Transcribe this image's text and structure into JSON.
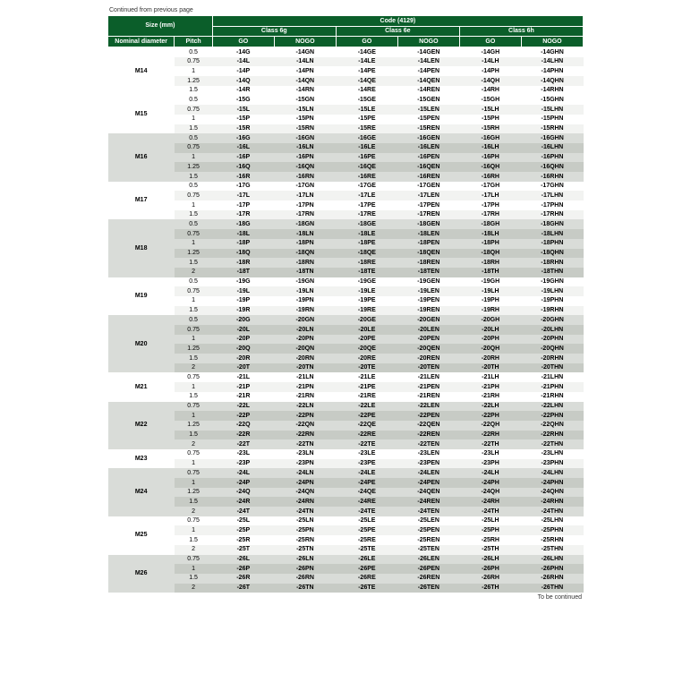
{
  "continued_top": "Continued from previous page",
  "continued_bottom": "To be continued",
  "header": {
    "size_mm": "Size (mm)",
    "code": "Code (4129)",
    "class6g": "Class 6g",
    "class6e": "Class 6e",
    "class6h": "Class 6h",
    "nominal": "Nominal diameter",
    "pitch": "Pitch",
    "go": "GO",
    "nogo": "NOGO"
  },
  "groups": [
    {
      "nominal": "M14",
      "shade": "lite",
      "rows": [
        {
          "pitch": "0.5",
          "c": [
            "-14G",
            "-14GN",
            "-14GE",
            "-14GEN",
            "-14GH",
            "-14GHN"
          ]
        },
        {
          "pitch": "0.75",
          "c": [
            "-14L",
            "-14LN",
            "-14LE",
            "-14LEN",
            "-14LH",
            "-14LHN"
          ]
        },
        {
          "pitch": "1",
          "c": [
            "-14P",
            "-14PN",
            "-14PE",
            "-14PEN",
            "-14PH",
            "-14PHN"
          ]
        },
        {
          "pitch": "1.25",
          "c": [
            "-14Q",
            "-14QN",
            "-14QE",
            "-14QEN",
            "-14QH",
            "-14QHN"
          ]
        },
        {
          "pitch": "1.5",
          "c": [
            "-14R",
            "-14RN",
            "-14RE",
            "-14REN",
            "-14RH",
            "-14RHN"
          ]
        }
      ]
    },
    {
      "nominal": "M15",
      "shade": "lite",
      "rows": [
        {
          "pitch": "0.5",
          "c": [
            "-15G",
            "-15GN",
            "-15GE",
            "-15GEN",
            "-15GH",
            "-15GHN"
          ]
        },
        {
          "pitch": "0.75",
          "c": [
            "-15L",
            "-15LN",
            "-15LE",
            "-15LEN",
            "-15LH",
            "-15LHN"
          ]
        },
        {
          "pitch": "1",
          "c": [
            "-15P",
            "-15PN",
            "-15PE",
            "-15PEN",
            "-15PH",
            "-15PHN"
          ]
        },
        {
          "pitch": "1.5",
          "c": [
            "-15R",
            "-15RN",
            "-15RE",
            "-15REN",
            "-15RH",
            "-15RHN"
          ]
        }
      ]
    },
    {
      "nominal": "M16",
      "shade": "grey",
      "rows": [
        {
          "pitch": "0.5",
          "c": [
            "-16G",
            "-16GN",
            "-16GE",
            "-16GEN",
            "-16GH",
            "-16GHN"
          ]
        },
        {
          "pitch": "0.75",
          "c": [
            "-16L",
            "-16LN",
            "-16LE",
            "-16LEN",
            "-16LH",
            "-16LHN"
          ]
        },
        {
          "pitch": "1",
          "c": [
            "-16P",
            "-16PN",
            "-16PE",
            "-16PEN",
            "-16PH",
            "-16PHN"
          ]
        },
        {
          "pitch": "1.25",
          "c": [
            "-16Q",
            "-16QN",
            "-16QE",
            "-16QEN",
            "-16QH",
            "-16QHN"
          ]
        },
        {
          "pitch": "1.5",
          "c": [
            "-16R",
            "-16RN",
            "-16RE",
            "-16REN",
            "-16RH",
            "-16RHN"
          ]
        }
      ]
    },
    {
      "nominal": "M17",
      "shade": "lite",
      "rows": [
        {
          "pitch": "0.5",
          "c": [
            "-17G",
            "-17GN",
            "-17GE",
            "-17GEN",
            "-17GH",
            "-17GHN"
          ]
        },
        {
          "pitch": "0.75",
          "c": [
            "-17L",
            "-17LN",
            "-17LE",
            "-17LEN",
            "-17LH",
            "-17LHN"
          ]
        },
        {
          "pitch": "1",
          "c": [
            "-17P",
            "-17PN",
            "-17PE",
            "-17PEN",
            "-17PH",
            "-17PHN"
          ]
        },
        {
          "pitch": "1.5",
          "c": [
            "-17R",
            "-17RN",
            "-17RE",
            "-17REN",
            "-17RH",
            "-17RHN"
          ]
        }
      ]
    },
    {
      "nominal": "M18",
      "shade": "grey",
      "rows": [
        {
          "pitch": "0.5",
          "c": [
            "-18G",
            "-18GN",
            "-18GE",
            "-18GEN",
            "-18GH",
            "-18GHN"
          ]
        },
        {
          "pitch": "0.75",
          "c": [
            "-18L",
            "-18LN",
            "-18LE",
            "-18LEN",
            "-18LH",
            "-18LHN"
          ]
        },
        {
          "pitch": "1",
          "c": [
            "-18P",
            "-18PN",
            "-18PE",
            "-18PEN",
            "-18PH",
            "-18PHN"
          ]
        },
        {
          "pitch": "1.25",
          "c": [
            "-18Q",
            "-18QN",
            "-18QE",
            "-18QEN",
            "-18QH",
            "-18QHN"
          ]
        },
        {
          "pitch": "1.5",
          "c": [
            "-18R",
            "-18RN",
            "-18RE",
            "-18REN",
            "-18RH",
            "-18RHN"
          ]
        },
        {
          "pitch": "2",
          "c": [
            "-18T",
            "-18TN",
            "-18TE",
            "-18TEN",
            "-18TH",
            "-18THN"
          ]
        }
      ]
    },
    {
      "nominal": "M19",
      "shade": "lite",
      "rows": [
        {
          "pitch": "0.5",
          "c": [
            "-19G",
            "-19GN",
            "-19GE",
            "-19GEN",
            "-19GH",
            "-19GHN"
          ]
        },
        {
          "pitch": "0.75",
          "c": [
            "-19L",
            "-19LN",
            "-19LE",
            "-19LEN",
            "-19LH",
            "-19LHN"
          ]
        },
        {
          "pitch": "1",
          "c": [
            "-19P",
            "-19PN",
            "-19PE",
            "-19PEN",
            "-19PH",
            "-19PHN"
          ]
        },
        {
          "pitch": "1.5",
          "c": [
            "-19R",
            "-19RN",
            "-19RE",
            "-19REN",
            "-19RH",
            "-19RHN"
          ]
        }
      ]
    },
    {
      "nominal": "M20",
      "shade": "grey",
      "rows": [
        {
          "pitch": "0.5",
          "c": [
            "-20G",
            "-20GN",
            "-20GE",
            "-20GEN",
            "-20GH",
            "-20GHN"
          ]
        },
        {
          "pitch": "0.75",
          "c": [
            "-20L",
            "-20LN",
            "-20LE",
            "-20LEN",
            "-20LH",
            "-20LHN"
          ]
        },
        {
          "pitch": "1",
          "c": [
            "-20P",
            "-20PN",
            "-20PE",
            "-20PEN",
            "-20PH",
            "-20PHN"
          ]
        },
        {
          "pitch": "1.25",
          "c": [
            "-20Q",
            "-20QN",
            "-20QE",
            "-20QEN",
            "-20QH",
            "-20QHN"
          ]
        },
        {
          "pitch": "1.5",
          "c": [
            "-20R",
            "-20RN",
            "-20RE",
            "-20REN",
            "-20RH",
            "-20RHN"
          ]
        },
        {
          "pitch": "2",
          "c": [
            "-20T",
            "-20TN",
            "-20TE",
            "-20TEN",
            "-20TH",
            "-20THN"
          ]
        }
      ]
    },
    {
      "nominal": "M21",
      "shade": "lite",
      "rows": [
        {
          "pitch": "0.75",
          "c": [
            "-21L",
            "-21LN",
            "-21LE",
            "-21LEN",
            "-21LH",
            "-21LHN"
          ]
        },
        {
          "pitch": "1",
          "c": [
            "-21P",
            "-21PN",
            "-21PE",
            "-21PEN",
            "-21PH",
            "-21PHN"
          ]
        },
        {
          "pitch": "1.5",
          "c": [
            "-21R",
            "-21RN",
            "-21RE",
            "-21REN",
            "-21RH",
            "-21RHN"
          ]
        }
      ]
    },
    {
      "nominal": "M22",
      "shade": "grey",
      "rows": [
        {
          "pitch": "0.75",
          "c": [
            "-22L",
            "-22LN",
            "-22LE",
            "-22LEN",
            "-22LH",
            "-22LHN"
          ]
        },
        {
          "pitch": "1",
          "c": [
            "-22P",
            "-22PN",
            "-22PE",
            "-22PEN",
            "-22PH",
            "-22PHN"
          ]
        },
        {
          "pitch": "1.25",
          "c": [
            "-22Q",
            "-22QN",
            "-22QE",
            "-22QEN",
            "-22QH",
            "-22QHN"
          ]
        },
        {
          "pitch": "1.5",
          "c": [
            "-22R",
            "-22RN",
            "-22RE",
            "-22REN",
            "-22RH",
            "-22RHN"
          ]
        },
        {
          "pitch": "2",
          "c": [
            "-22T",
            "-22TN",
            "-22TE",
            "-22TEN",
            "-22TH",
            "-22THN"
          ]
        }
      ]
    },
    {
      "nominal": "M23",
      "shade": "lite",
      "rows": [
        {
          "pitch": "0.75",
          "c": [
            "-23L",
            "-23LN",
            "-23LE",
            "-23LEN",
            "-23LH",
            "-23LHN"
          ]
        },
        {
          "pitch": "1",
          "c": [
            "-23P",
            "-23PN",
            "-23PE",
            "-23PEN",
            "-23PH",
            "-23PHN"
          ]
        }
      ]
    },
    {
      "nominal": "M24",
      "shade": "grey",
      "rows": [
        {
          "pitch": "0.75",
          "c": [
            "-24L",
            "-24LN",
            "-24LE",
            "-24LEN",
            "-24LH",
            "-24LHN"
          ]
        },
        {
          "pitch": "1",
          "c": [
            "-24P",
            "-24PN",
            "-24PE",
            "-24PEN",
            "-24PH",
            "-24PHN"
          ]
        },
        {
          "pitch": "1.25",
          "c": [
            "-24Q",
            "-24QN",
            "-24QE",
            "-24QEN",
            "-24QH",
            "-24QHN"
          ]
        },
        {
          "pitch": "1.5",
          "c": [
            "-24R",
            "-24RN",
            "-24RE",
            "-24REN",
            "-24RH",
            "-24RHN"
          ]
        },
        {
          "pitch": "2",
          "c": [
            "-24T",
            "-24TN",
            "-24TE",
            "-24TEN",
            "-24TH",
            "-24THN"
          ]
        }
      ]
    },
    {
      "nominal": "M25",
      "shade": "lite",
      "rows": [
        {
          "pitch": "0.75",
          "c": [
            "-25L",
            "-25LN",
            "-25LE",
            "-25LEN",
            "-25LH",
            "-25LHN"
          ]
        },
        {
          "pitch": "1",
          "c": [
            "-25P",
            "-25PN",
            "-25PE",
            "-25PEN",
            "-25PH",
            "-25PHN"
          ]
        },
        {
          "pitch": "1.5",
          "c": [
            "-25R",
            "-25RN",
            "-25RE",
            "-25REN",
            "-25RH",
            "-25RHN"
          ]
        },
        {
          "pitch": "2",
          "c": [
            "-25T",
            "-25TN",
            "-25TE",
            "-25TEN",
            "-25TH",
            "-25THN"
          ]
        }
      ]
    },
    {
      "nominal": "M26",
      "shade": "grey",
      "rows": [
        {
          "pitch": "0.75",
          "c": [
            "-26L",
            "-26LN",
            "-26LE",
            "-26LEN",
            "-26LH",
            "-26LHN"
          ]
        },
        {
          "pitch": "1",
          "c": [
            "-26P",
            "-26PN",
            "-26PE",
            "-26PEN",
            "-26PH",
            "-26PHN"
          ]
        },
        {
          "pitch": "1.5",
          "c": [
            "-26R",
            "-26RN",
            "-26RE",
            "-26REN",
            "-26RH",
            "-26RHN"
          ]
        },
        {
          "pitch": "2",
          "c": [
            "-26T",
            "-26TN",
            "-26TE",
            "-26TEN",
            "-26TH",
            "-26THN"
          ]
        }
      ]
    }
  ],
  "style": {
    "header_bg": "#0b5e2a",
    "header_fg": "#ffffff",
    "grey_bg": "#d9dcd8",
    "grey_alt_bg": "#c7cbc5",
    "lite_bg": "#ffffff",
    "lite_alt_bg": "#f2f3f1",
    "font_size_pt": 7
  }
}
